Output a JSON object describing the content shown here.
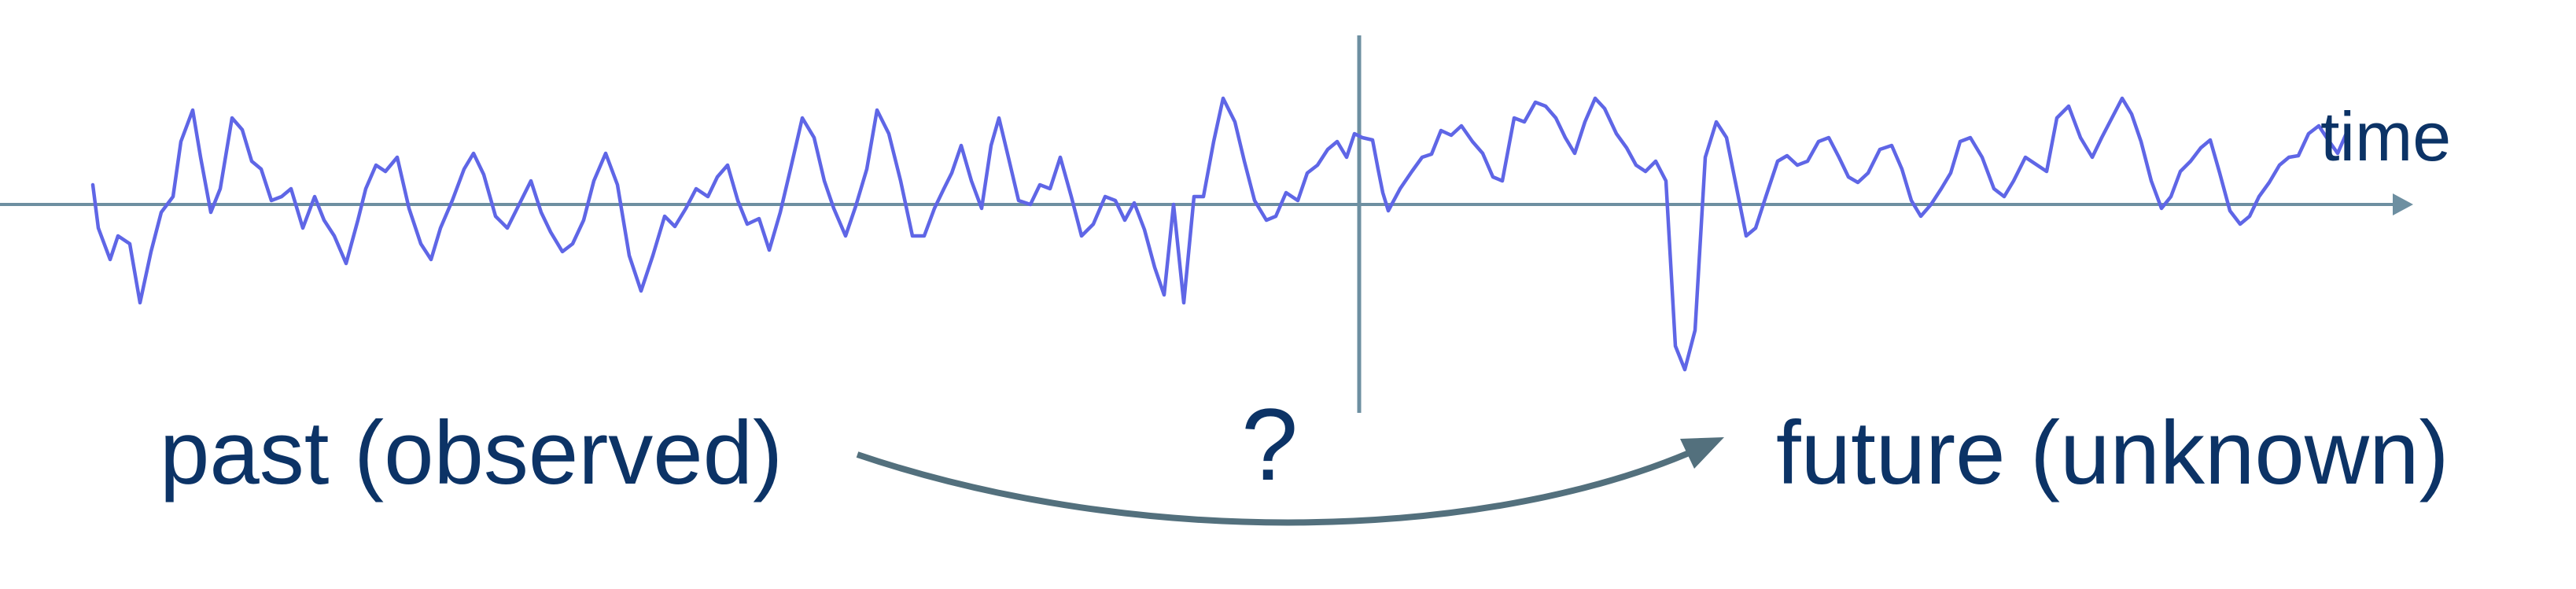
{
  "labels": {
    "time": "time",
    "past": "past (observed)",
    "question": "?",
    "future": "future (unknown)"
  },
  "colors": {
    "signal": "#5f66e6",
    "axis": "#6d8fa1",
    "arrow": "#53707d",
    "text": "#0c3366"
  },
  "icons": {
    "axis_head": "arrowhead-icon",
    "forecast_arrow": "curved-arrow-icon"
  }
}
